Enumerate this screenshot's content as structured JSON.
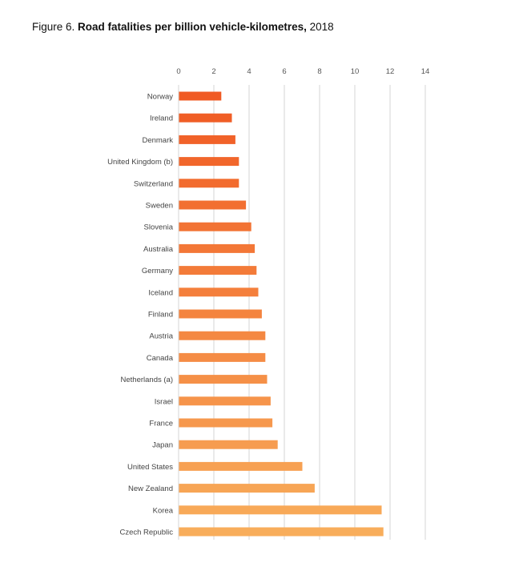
{
  "figure": {
    "prefix": "Figure 6.",
    "title_bold": "Road fatalities per billion vehicle-kilometres,",
    "year": "2018"
  },
  "chart_data": {
    "type": "bar",
    "orientation": "horizontal",
    "title": "Road fatalities per billion vehicle-kilometres, 2018",
    "xlim": [
      0,
      14
    ],
    "x_ticks": [
      0,
      2,
      4,
      6,
      8,
      10,
      12,
      14
    ],
    "x_tick_labels": [
      "0",
      "2",
      "4",
      "6",
      "8",
      "10",
      "12",
      "14"
    ],
    "grid": "vertical",
    "categories": [
      "Norway",
      "Ireland",
      "Denmark",
      "United Kingdom (b)",
      "Switzerland",
      "Sweden",
      "Slovenia",
      "Australia",
      "Germany",
      "Iceland",
      "Finland",
      "Austria",
      "Canada",
      "Netherlands (a)",
      "Israel",
      "France",
      "Japan",
      "United States",
      "New Zealand",
      "Korea",
      "Czech Republic"
    ],
    "values": [
      2.4,
      3.0,
      3.2,
      3.4,
      3.4,
      3.8,
      4.1,
      4.3,
      4.4,
      4.5,
      4.7,
      4.9,
      4.9,
      5.0,
      5.2,
      5.3,
      5.6,
      7.0,
      7.7,
      11.5,
      11.6
    ],
    "color_start": "#f05a23",
    "color_end": "#f8ad5b",
    "grid_color": "#d4d4d4"
  }
}
